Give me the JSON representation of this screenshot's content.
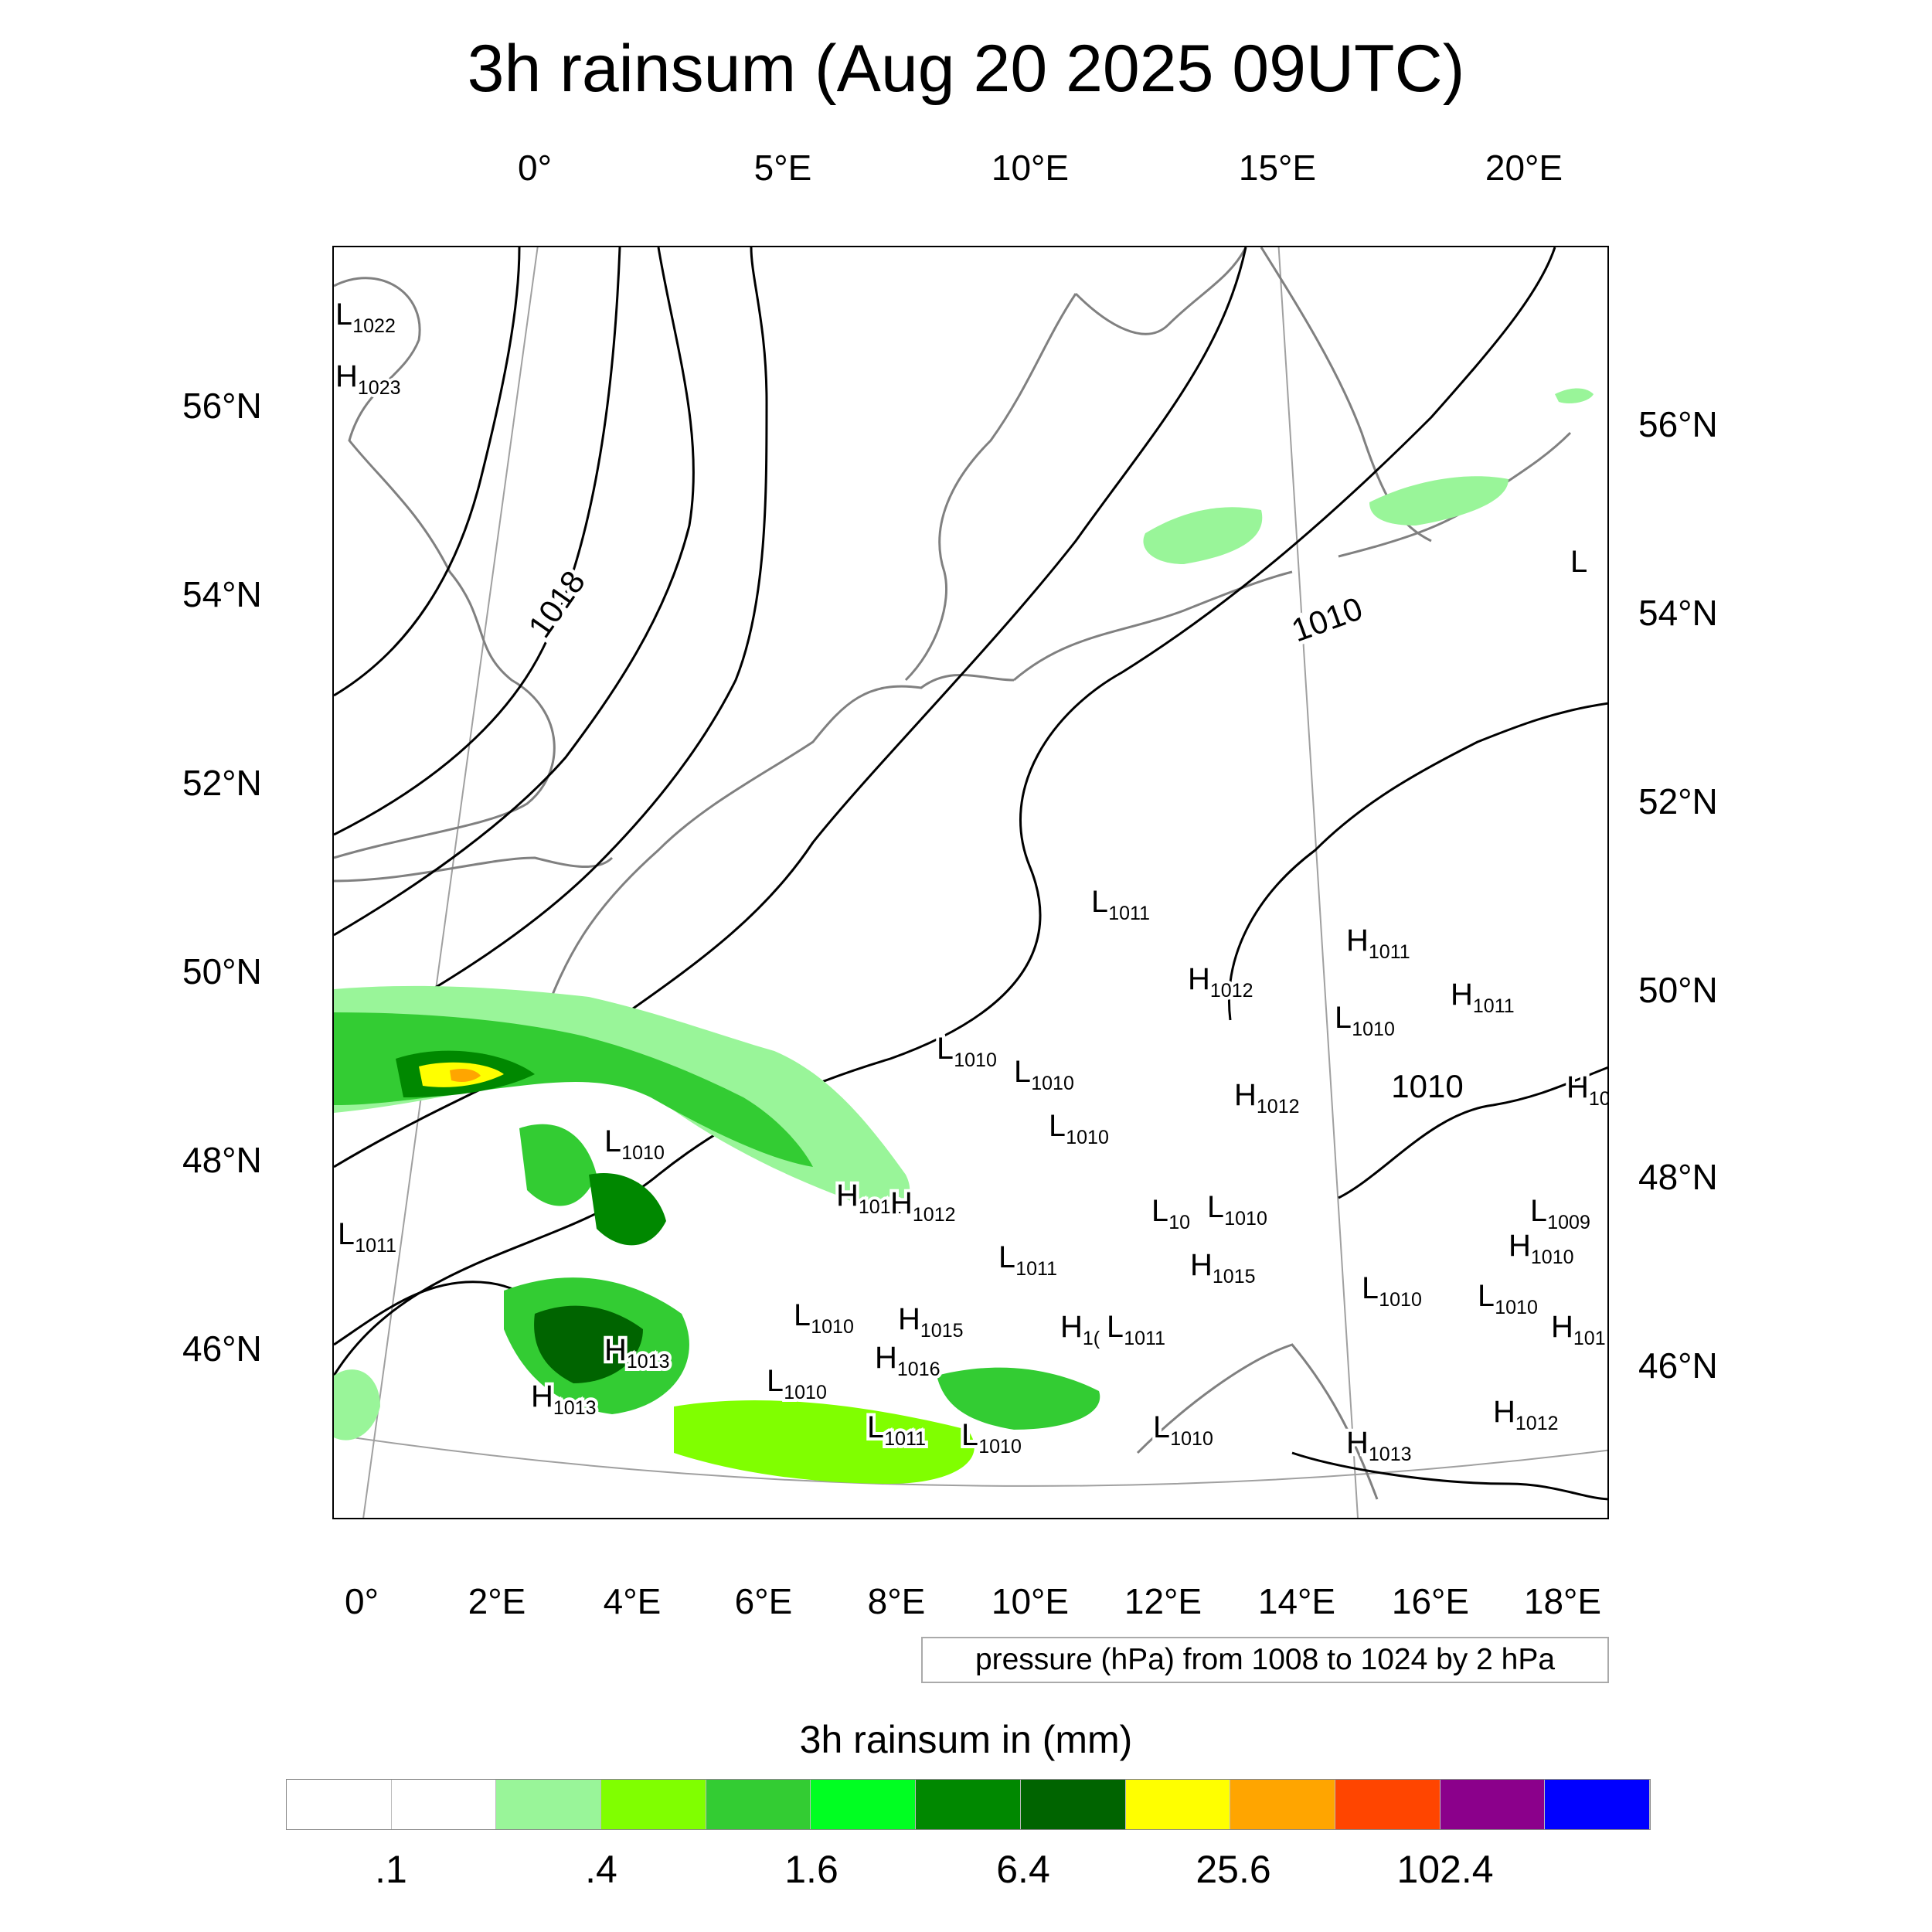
{
  "title": "3h rainsum (Aug 20 2025 09UTC)",
  "top_lon_labels": [
    "0°",
    "5°E",
    "10°E",
    "15°E",
    "20°E"
  ],
  "left_lat_labels": [
    "56°N",
    "54°N",
    "52°N",
    "50°N",
    "48°N",
    "46°N"
  ],
  "right_lat_labels": [
    "56°N",
    "54°N",
    "52°N",
    "50°N",
    "48°N",
    "46°N"
  ],
  "bottom_lon_labels": [
    "0°",
    "2°E",
    "4°E",
    "6°E",
    "8°E",
    "10°E",
    "12°E",
    "14°E",
    "16°E",
    "18°E"
  ],
  "info_box": "pressure (hPa) from 1008 to 1024 by 2 hPa",
  "colorbar": {
    "title": "3h rainsum in (mm)",
    "colors": [
      "#ffffff",
      "#ffffff",
      "#99f599",
      "#80ff00",
      "#33cc33",
      "#00ff22",
      "#008800",
      "#006400",
      "#ffff00",
      "#ffa500",
      "#ff4500",
      "#8b008b",
      "#0000ff"
    ],
    "tick_labels": [
      ".1",
      ".4",
      "1.6",
      "6.4",
      "25.6",
      "102.4"
    ]
  },
  "isobar_labels": [
    {
      "text": "1018",
      "angle": -55
    },
    {
      "text": "1010",
      "angle": -20
    },
    {
      "text": "1010",
      "angle": 0
    }
  ],
  "pressure_centers": [
    {
      "type": "L",
      "value": "1022"
    },
    {
      "type": "H",
      "value": "1023"
    },
    {
      "type": "L",
      "value": "1011"
    },
    {
      "type": "H",
      "value": "1011"
    },
    {
      "type": "H",
      "value": "1012"
    },
    {
      "type": "L",
      "value": "1010"
    },
    {
      "type": "H",
      "value": "1011"
    },
    {
      "type": "L",
      "value": "1010"
    },
    {
      "type": "L",
      "value": "1010"
    },
    {
      "type": "H",
      "value": "1012"
    },
    {
      "type": "L",
      "value": "1010"
    },
    {
      "type": "H",
      "value": "10"
    },
    {
      "type": "L",
      "value": "1010"
    },
    {
      "type": "L",
      "value": "1011"
    },
    {
      "type": "H",
      "value": "1012"
    },
    {
      "type": "H",
      "value": "1012"
    },
    {
      "type": "L",
      "value": "10"
    },
    {
      "type": "L",
      "value": "1010"
    },
    {
      "type": "L",
      "value": "1009"
    },
    {
      "type": "H",
      "value": "1010"
    },
    {
      "type": "L",
      "value": "1011"
    },
    {
      "type": "H",
      "value": "1015"
    },
    {
      "type": "L",
      "value": "1010"
    },
    {
      "type": "L",
      "value": "1010"
    },
    {
      "type": "L",
      "value": "1010"
    },
    {
      "type": "H",
      "value": "1015"
    },
    {
      "type": "H",
      "value": "1("
    },
    {
      "type": "L",
      "value": "1011"
    },
    {
      "type": "H",
      "value": "101"
    },
    {
      "type": "H",
      "value": "1013"
    },
    {
      "type": "H",
      "value": "1016"
    },
    {
      "type": "L",
      "value": "1010"
    },
    {
      "type": "H",
      "value": "1013"
    },
    {
      "type": "L",
      "value": "1011"
    },
    {
      "type": "L",
      "value": "1010"
    },
    {
      "type": "L",
      "value": "1010"
    },
    {
      "type": "H",
      "value": "1013"
    },
    {
      "type": "H",
      "value": "1012"
    },
    {
      "type": "L",
      "value": ""
    }
  ]
}
